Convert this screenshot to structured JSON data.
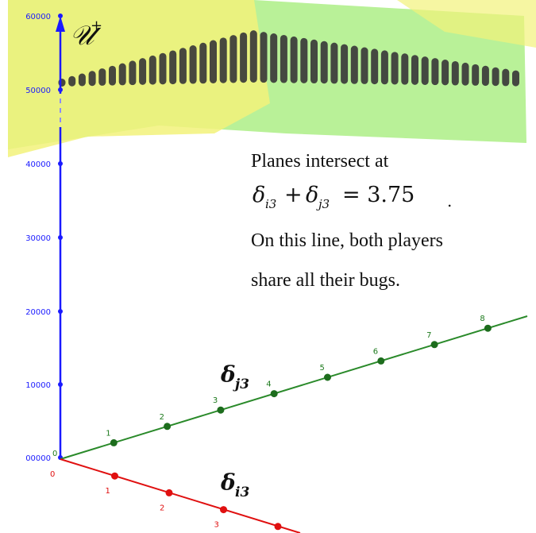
{
  "vertical_axis": {
    "label_main": "𝒰",
    "label_sup": "+",
    "tick_labels": [
      "00000",
      "10000",
      "20000",
      "30000",
      "40000",
      "50000",
      "60000"
    ]
  },
  "delta_j3_axis": {
    "label_base": "δ",
    "label_sub": "j3",
    "tick_labels": [
      "0",
      "1",
      "2",
      "3",
      "4",
      "5",
      "6",
      "7",
      "8"
    ],
    "color": "#1d7a1d"
  },
  "delta_i3_axis": {
    "label_base": "δ",
    "label_sub": "i3",
    "tick_labels": [
      "0",
      "1",
      "2",
      "3"
    ],
    "color": "#e01010"
  },
  "annotation": {
    "line1": "Planes intersect at",
    "eq_d1": "δ",
    "eq_s1": "i3",
    "eq_plus": "+",
    "eq_d2": "δ",
    "eq_s2": "j3",
    "eq_rhs": "= 3.75",
    "eq_period": ".",
    "line3": "On this line, both players",
    "line4": "share all their bugs."
  },
  "colors": {
    "plane_yellow": "#f2f27a",
    "plane_green": "#a8ee7e",
    "pill_color": "#3a3a3a",
    "axis_blue": "#1a1aff"
  }
}
